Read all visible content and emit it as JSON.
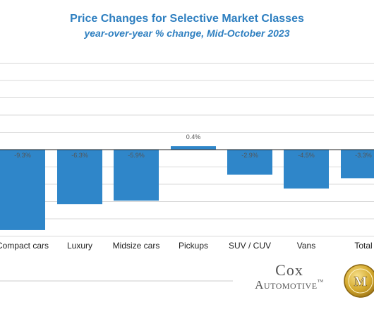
{
  "chart_data": {
    "type": "bar",
    "title": "Price Changes for Selective Market Classes",
    "subtitle": "year-over-year % change, Mid-October 2023",
    "categories": [
      "Compact cars",
      "Luxury",
      "Midsize cars",
      "Pickups",
      "SUV / CUV",
      "Vans",
      "Total"
    ],
    "values": [
      -9.3,
      -6.3,
      -5.9,
      0.4,
      -2.9,
      -4.5,
      -3.3
    ],
    "value_labels": [
      "-9.3%",
      "-6.3%",
      "-5.9%",
      "0.4%",
      "-2.9%",
      "-4.5%",
      "-3.3%"
    ],
    "xlabel": "",
    "ylabel": "",
    "ylim": [
      -10,
      10
    ],
    "grid": true,
    "legend": "none",
    "bar_color": "#2f86c9"
  },
  "branding": {
    "company_top": "Cox",
    "company_bottom": "Automotive",
    "trademark": "™",
    "seal_letter": "M"
  },
  "colors": {
    "title": "#2e7fc0",
    "bar": "#2f86c9",
    "grid": "#d9d9d9",
    "axis": "#222222"
  }
}
